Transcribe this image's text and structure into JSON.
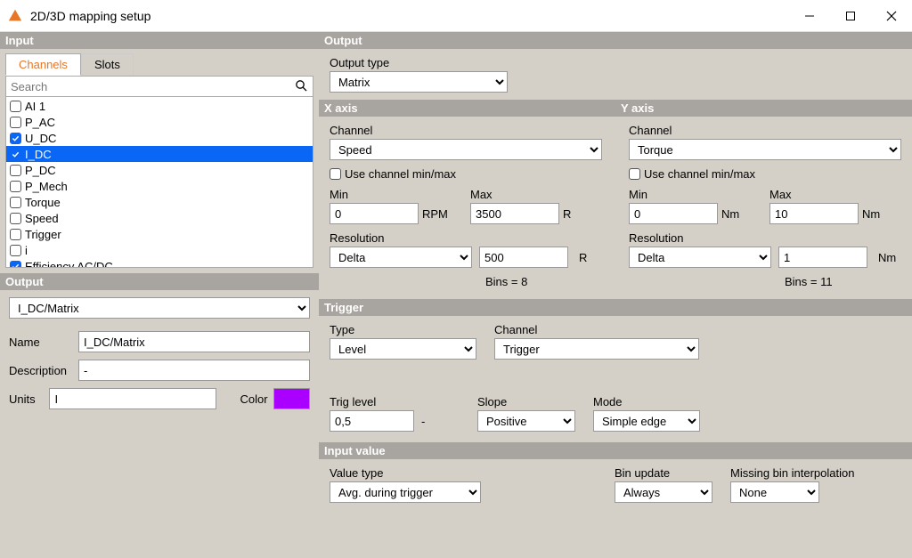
{
  "window": {
    "title": "2D/3D mapping setup",
    "app_icon_color": "#e77627"
  },
  "left": {
    "input_header": "Input",
    "tabs": {
      "channels": "Channels",
      "slots": "Slots"
    },
    "search_placeholder": "Search",
    "channels": [
      {
        "label": "AI 1",
        "checked": false
      },
      {
        "label": "P_AC",
        "checked": false
      },
      {
        "label": "U_DC",
        "checked": true
      },
      {
        "label": "I_DC",
        "checked": true,
        "selected": true
      },
      {
        "label": "P_DC",
        "checked": false
      },
      {
        "label": "P_Mech",
        "checked": false
      },
      {
        "label": "Torque",
        "checked": false
      },
      {
        "label": "Speed",
        "checked": false
      },
      {
        "label": "Trigger",
        "checked": false
      },
      {
        "label": "i",
        "checked": false
      },
      {
        "label": "Efficiency AC/DC",
        "checked": true
      }
    ],
    "output_header": "Output",
    "output_select": "I_DC/Matrix",
    "name_label": "Name",
    "name_value": "I_DC/Matrix",
    "desc_label": "Description",
    "desc_value": "-",
    "units_label": "Units",
    "units_value": "I",
    "color_label": "Color",
    "color_value": "#a900ff"
  },
  "right": {
    "output_header": "Output",
    "output_type_label": "Output type",
    "output_type_value": "Matrix",
    "xaxis_header": "X axis",
    "yaxis_header": "Y axis",
    "channel_label": "Channel",
    "use_minmax_label": "Use channel min/max",
    "min_label": "Min",
    "max_label": "Max",
    "resolution_label": "Resolution",
    "x": {
      "channel": "Speed",
      "use_minmax": false,
      "min": "0",
      "min_unit": "RPM",
      "max": "3500",
      "max_unit": "R",
      "res_type": "Delta",
      "res_val": "500",
      "res_unit": "R",
      "bins": "Bins = 8"
    },
    "y": {
      "channel": "Torque",
      "use_minmax": false,
      "min": "0",
      "min_unit": "Nm",
      "max": "10",
      "max_unit": "Nm",
      "res_type": "Delta",
      "res_val": "1",
      "res_unit": "Nm",
      "bins": "Bins = 11"
    },
    "trigger_header": "Trigger",
    "trigger": {
      "type_label": "Type",
      "type_value": "Level",
      "channel_label": "Channel",
      "channel_value": "Trigger",
      "level_label": "Trig level",
      "level_value": "0,5",
      "level_unit": "-",
      "slope_label": "Slope",
      "slope_value": "Positive",
      "mode_label": "Mode",
      "mode_value": "Simple edge"
    },
    "inputvalue_header": "Input value",
    "inputvalue": {
      "valuetype_label": "Value type",
      "valuetype_value": "Avg. during trigger",
      "binupdate_label": "Bin update",
      "binupdate_value": "Always",
      "missing_label": "Missing bin interpolation",
      "missing_value": "None"
    }
  }
}
